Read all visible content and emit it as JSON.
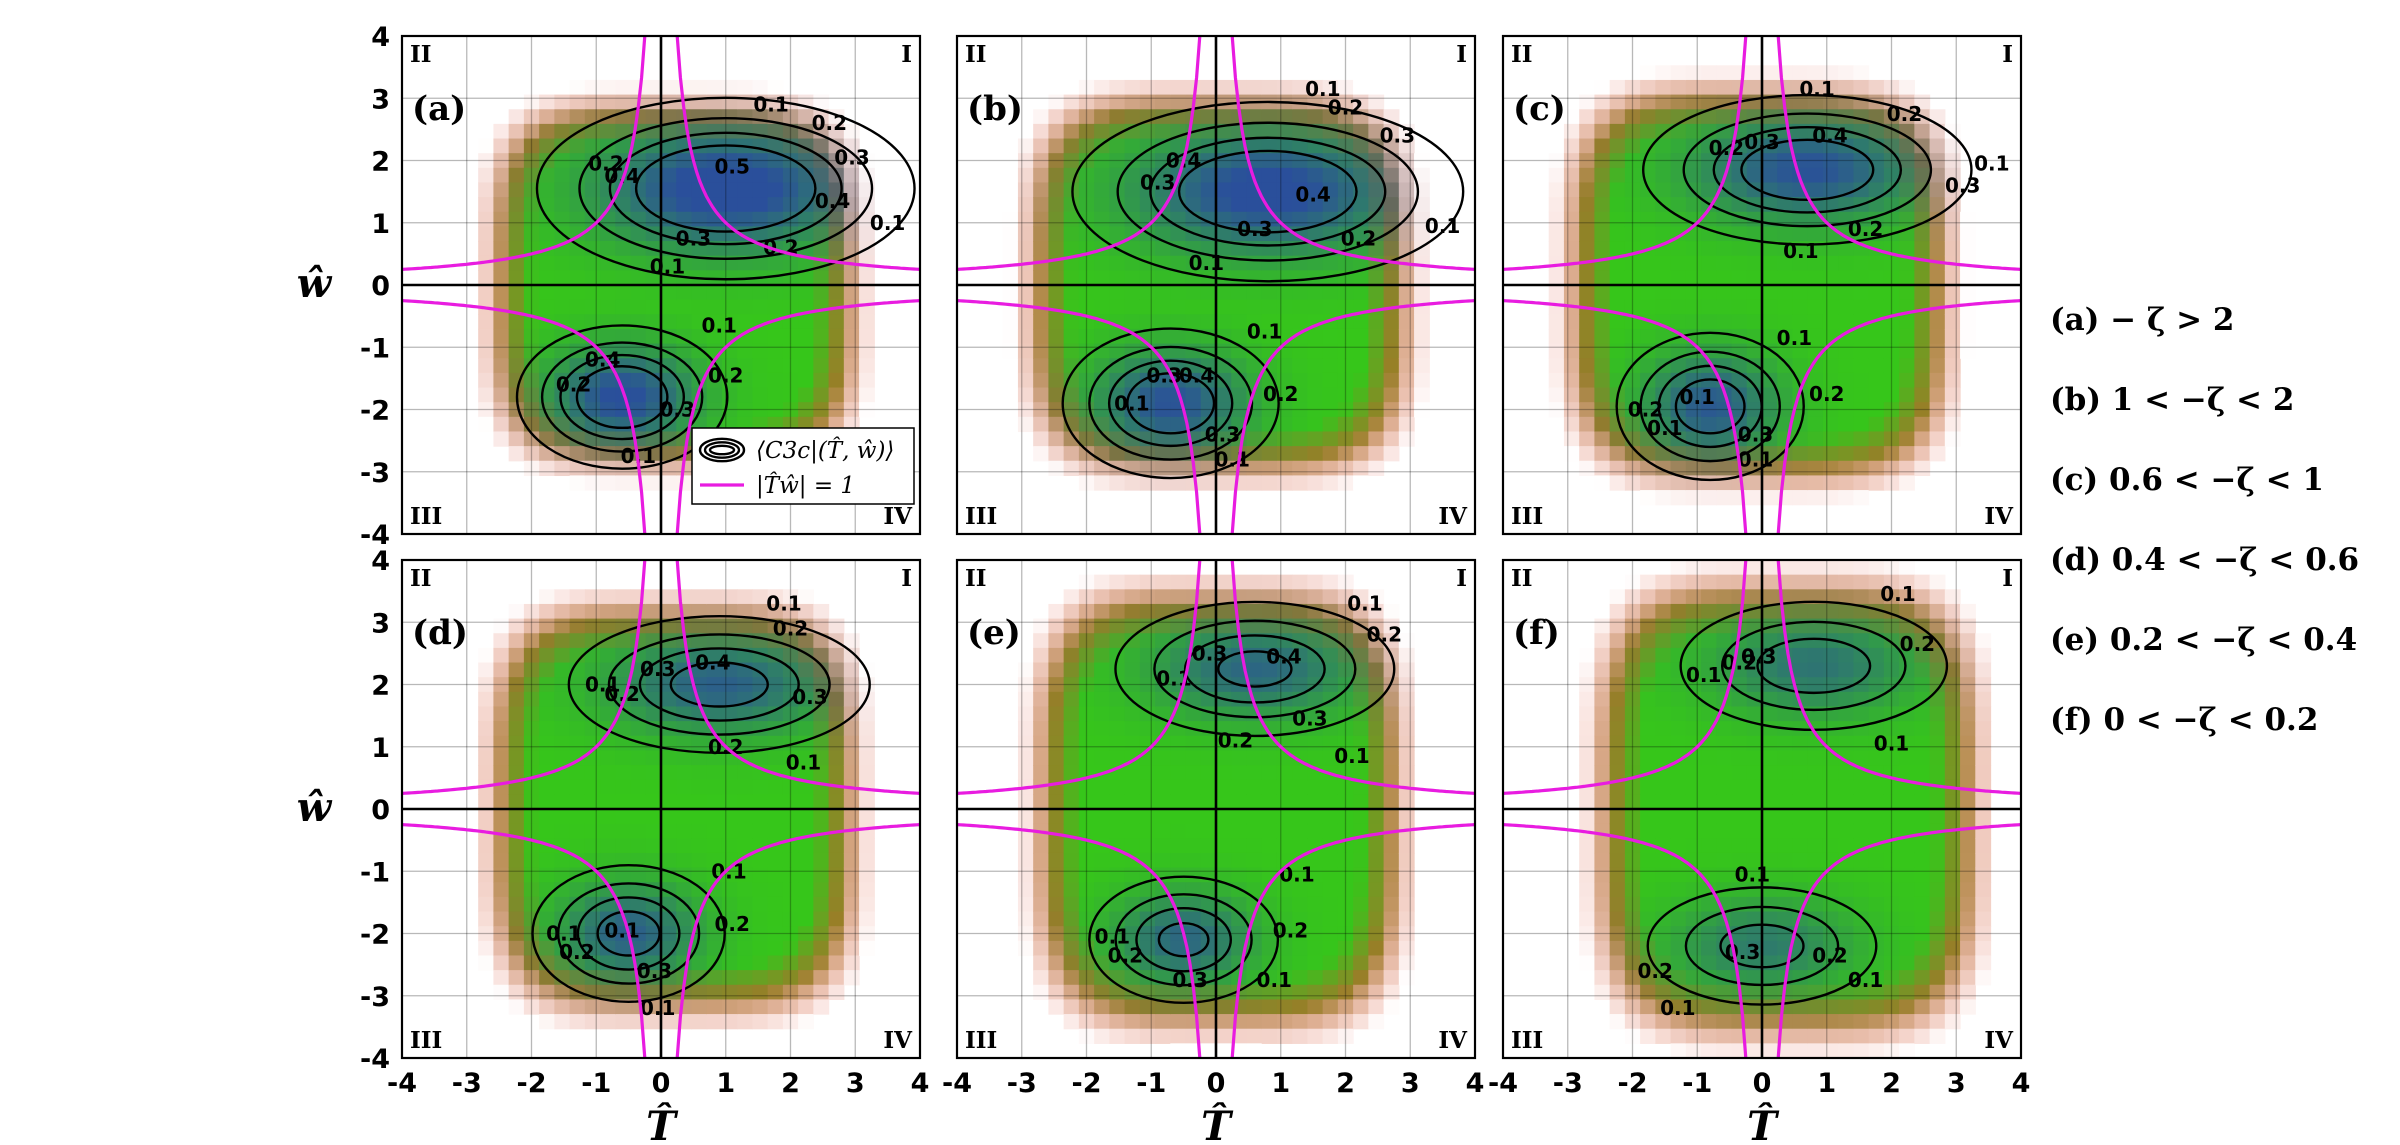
{
  "chart_data": {
    "type": "heatmap",
    "xlabel": "T̂",
    "ylabel": "ŵ",
    "xlim": [
      -4,
      4
    ],
    "ylim": [
      -4,
      4
    ],
    "xticks": [
      -4,
      -3,
      -2,
      -1,
      0,
      1,
      2,
      3,
      4
    ],
    "yticks": [
      -4,
      -3,
      -2,
      -1,
      0,
      1,
      2,
      3,
      4
    ],
    "grid": true,
    "quadrants": {
      "q1": "I",
      "q2": "II",
      "q3": "III",
      "q4": "IV"
    },
    "colors": {
      "hyperbola": "#e81ce0",
      "contour": "#000000",
      "high": "#2a4f9b",
      "mid": "#36c61a",
      "low": "#e0402a"
    },
    "legend": {
      "placement": "panel (a) lower-right",
      "entries": [
        "⟨C3c|(T̂, ŵ)⟩",
        "|T̂ŵ| = 1"
      ]
    },
    "panels": [
      {
        "label": "(a)",
        "condition": "(a)  − ζ > 2",
        "upper": {
          "center": [
            1.0,
            1.55
          ],
          "rx": 2.1,
          "ry": 1.05,
          "strength": 1.0
        },
        "lower": {
          "center": [
            -0.6,
            -1.8
          ],
          "rx": 1.2,
          "ry": 0.85,
          "strength": 0.9
        },
        "spread": [
          2.4,
          2.5
        ],
        "contour_labels": [
          {
            "x": 1.7,
            "y": 2.9,
            "text": "0.1"
          },
          {
            "x": 2.6,
            "y": 2.6,
            "text": "0.2"
          },
          {
            "x": 2.95,
            "y": 2.05,
            "text": "0.3"
          },
          {
            "x": 2.65,
            "y": 1.35,
            "text": "0.4"
          },
          {
            "x": 1.1,
            "y": 1.9,
            "text": "0.5"
          },
          {
            "x": 0.5,
            "y": 0.75,
            "text": "0.3"
          },
          {
            "x": 1.85,
            "y": 0.6,
            "text": "0.2"
          },
          {
            "x": 0.1,
            "y": 0.3,
            "text": "0.1"
          },
          {
            "x": 3.5,
            "y": 1.0,
            "text": "0.1"
          },
          {
            "x": -0.6,
            "y": 1.75,
            "text": "0.4"
          },
          {
            "x": -0.85,
            "y": 1.95,
            "text": "0.2"
          },
          {
            "x": 0.9,
            "y": -0.65,
            "text": "0.1"
          },
          {
            "x": -0.9,
            "y": -1.2,
            "text": "0.4"
          },
          {
            "x": 0.25,
            "y": -2.0,
            "text": "0.3"
          },
          {
            "x": 1.0,
            "y": -1.45,
            "text": "0.2"
          },
          {
            "x": -1.35,
            "y": -1.6,
            "text": "0.2"
          },
          {
            "x": -0.35,
            "y": -2.75,
            "text": "0.1"
          }
        ]
      },
      {
        "label": "(b)",
        "condition": "(b) 1 < −ζ < 2",
        "upper": {
          "center": [
            0.8,
            1.5
          ],
          "rx": 2.2,
          "ry": 1.05,
          "strength": 0.95
        },
        "lower": {
          "center": [
            -0.7,
            -1.9
          ],
          "rx": 1.25,
          "ry": 0.9,
          "strength": 0.85
        },
        "spread": [
          2.5,
          2.6
        ],
        "contour_labels": [
          {
            "x": 1.65,
            "y": 3.15,
            "text": "0.1"
          },
          {
            "x": 2.0,
            "y": 2.85,
            "text": "0.2"
          },
          {
            "x": 2.8,
            "y": 2.4,
            "text": "0.3"
          },
          {
            "x": 1.5,
            "y": 1.45,
            "text": "0.4"
          },
          {
            "x": -0.5,
            "y": 2.0,
            "text": "0.4"
          },
          {
            "x": -0.9,
            "y": 1.65,
            "text": "0.3"
          },
          {
            "x": 0.6,
            "y": 0.9,
            "text": "0.3"
          },
          {
            "x": 2.2,
            "y": 0.75,
            "text": "0.2"
          },
          {
            "x": -0.15,
            "y": 0.35,
            "text": "0.1"
          },
          {
            "x": 3.5,
            "y": 0.95,
            "text": "0.1"
          },
          {
            "x": 0.75,
            "y": -0.75,
            "text": "0.1"
          },
          {
            "x": -0.8,
            "y": -1.45,
            "text": "0.3"
          },
          {
            "x": -0.3,
            "y": -1.45,
            "text": "0.4"
          },
          {
            "x": -1.3,
            "y": -1.9,
            "text": "0.1"
          },
          {
            "x": 0.1,
            "y": -2.4,
            "text": "0.3"
          },
          {
            "x": 1.0,
            "y": -1.75,
            "text": "0.2"
          },
          {
            "x": 0.25,
            "y": -2.8,
            "text": "0.1"
          }
        ]
      },
      {
        "label": "(c)",
        "condition": "(c) 0.6 < −ζ < 1",
        "upper": {
          "center": [
            0.7,
            1.85
          ],
          "rx": 1.9,
          "ry": 0.9,
          "strength": 0.85
        },
        "lower": {
          "center": [
            -0.8,
            -1.95
          ],
          "rx": 1.1,
          "ry": 0.9,
          "strength": 0.8
        },
        "spread": [
          2.5,
          2.7
        ],
        "contour_labels": [
          {
            "x": 0.85,
            "y": 3.15,
            "text": "0.1"
          },
          {
            "x": 2.2,
            "y": 2.75,
            "text": "0.2"
          },
          {
            "x": 3.55,
            "y": 1.95,
            "text": "0.1"
          },
          {
            "x": 1.05,
            "y": 2.4,
            "text": "0.4"
          },
          {
            "x": -0.55,
            "y": 2.2,
            "text": "0.2"
          },
          {
            "x": 0.0,
            "y": 2.3,
            "text": "0.3"
          },
          {
            "x": 3.1,
            "y": 1.6,
            "text": "0.3"
          },
          {
            "x": 1.6,
            "y": 0.9,
            "text": "0.2"
          },
          {
            "x": 0.6,
            "y": 0.55,
            "text": "0.1"
          },
          {
            "x": 0.5,
            "y": -0.85,
            "text": "0.1"
          },
          {
            "x": -1.0,
            "y": -1.8,
            "text": "0.1"
          },
          {
            "x": -1.8,
            "y": -2.0,
            "text": "0.2"
          },
          {
            "x": -1.5,
            "y": -2.3,
            "text": "0.1"
          },
          {
            "x": -0.1,
            "y": -2.4,
            "text": "0.3"
          },
          {
            "x": 1.0,
            "y": -1.75,
            "text": "0.2"
          },
          {
            "x": -0.1,
            "y": -2.8,
            "text": "0.1"
          }
        ]
      },
      {
        "label": "(d)",
        "condition": "(d) 0.4 < −ζ < 0.6",
        "upper": {
          "center": [
            0.9,
            2.0
          ],
          "rx": 1.8,
          "ry": 0.85,
          "strength": 0.75
        },
        "lower": {
          "center": [
            -0.5,
            -2.0
          ],
          "rx": 1.15,
          "ry": 0.85,
          "strength": 0.75
        },
        "spread": [
          2.4,
          2.8
        ],
        "contour_labels": [
          {
            "x": 1.9,
            "y": 3.3,
            "text": "0.1"
          },
          {
            "x": 2.0,
            "y": 2.9,
            "text": "0.2"
          },
          {
            "x": -0.05,
            "y": 2.25,
            "text": "0.3"
          },
          {
            "x": 0.8,
            "y": 2.35,
            "text": "0.4"
          },
          {
            "x": 2.3,
            "y": 1.8,
            "text": "0.3"
          },
          {
            "x": -0.9,
            "y": 2.0,
            "text": "0.1"
          },
          {
            "x": -0.6,
            "y": 1.85,
            "text": "0.2"
          },
          {
            "x": 1.0,
            "y": 1.0,
            "text": "0.2"
          },
          {
            "x": 2.2,
            "y": 0.75,
            "text": "0.1"
          },
          {
            "x": 1.05,
            "y": -1.0,
            "text": "0.1"
          },
          {
            "x": -1.5,
            "y": -2.0,
            "text": "0.1"
          },
          {
            "x": -0.6,
            "y": -1.95,
            "text": "0.1"
          },
          {
            "x": -1.3,
            "y": -2.3,
            "text": "0.2"
          },
          {
            "x": -0.1,
            "y": -2.6,
            "text": "0.3"
          },
          {
            "x": 1.1,
            "y": -1.85,
            "text": "0.2"
          },
          {
            "x": -0.05,
            "y": -3.2,
            "text": "0.1"
          }
        ]
      },
      {
        "label": "(e)",
        "condition": "(e) 0.2 < −ζ < 0.4",
        "upper": {
          "center": [
            0.6,
            2.25
          ],
          "rx": 1.7,
          "ry": 0.85,
          "strength": 0.7
        },
        "lower": {
          "center": [
            -0.5,
            -2.1
          ],
          "rx": 1.15,
          "ry": 0.8,
          "strength": 0.7
        },
        "spread": [
          2.4,
          3.0
        ],
        "contour_labels": [
          {
            "x": 2.3,
            "y": 3.3,
            "text": "0.1"
          },
          {
            "x": 2.6,
            "y": 2.8,
            "text": "0.2"
          },
          {
            "x": 1.05,
            "y": 2.45,
            "text": "0.4"
          },
          {
            "x": -0.1,
            "y": 2.5,
            "text": "0.3"
          },
          {
            "x": -0.65,
            "y": 2.1,
            "text": "0.1"
          },
          {
            "x": 1.45,
            "y": 1.45,
            "text": "0.3"
          },
          {
            "x": 0.3,
            "y": 1.1,
            "text": "0.2"
          },
          {
            "x": 2.1,
            "y": 0.85,
            "text": "0.1"
          },
          {
            "x": 1.25,
            "y": -1.05,
            "text": "0.1"
          },
          {
            "x": -1.6,
            "y": -2.05,
            "text": "0.1"
          },
          {
            "x": -1.4,
            "y": -2.35,
            "text": "0.2"
          },
          {
            "x": -0.4,
            "y": -2.75,
            "text": "0.3"
          },
          {
            "x": 1.15,
            "y": -1.95,
            "text": "0.2"
          },
          {
            "x": 0.9,
            "y": -2.75,
            "text": "0.1"
          }
        ]
      },
      {
        "label": "(f)",
        "condition": "(f) 0 < −ζ < 0.2",
        "upper": {
          "center": [
            0.8,
            2.3
          ],
          "rx": 1.7,
          "ry": 0.85,
          "strength": 0.6
        },
        "lower": {
          "center": [
            0.0,
            -2.2
          ],
          "rx": 1.5,
          "ry": 0.8,
          "strength": 0.55
        },
        "spread": [
          2.5,
          3.1
        ],
        "contour_labels": [
          {
            "x": 2.1,
            "y": 3.45,
            "text": "0.1"
          },
          {
            "x": 2.4,
            "y": 2.65,
            "text": "0.2"
          },
          {
            "x": -0.05,
            "y": 2.45,
            "text": "0.3"
          },
          {
            "x": -0.35,
            "y": 2.35,
            "text": "0.2"
          },
          {
            "x": -0.9,
            "y": 2.15,
            "text": "0.1"
          },
          {
            "x": 2.0,
            "y": 1.05,
            "text": "0.1"
          },
          {
            "x": -0.15,
            "y": -1.05,
            "text": "0.1"
          },
          {
            "x": -0.3,
            "y": -2.3,
            "text": "0.3"
          },
          {
            "x": 1.05,
            "y": -2.35,
            "text": "0.2"
          },
          {
            "x": -1.65,
            "y": -2.6,
            "text": "0.2"
          },
          {
            "x": -1.3,
            "y": -3.2,
            "text": "0.1"
          },
          {
            "x": 1.6,
            "y": -2.75,
            "text": "0.1"
          }
        ]
      }
    ]
  }
}
